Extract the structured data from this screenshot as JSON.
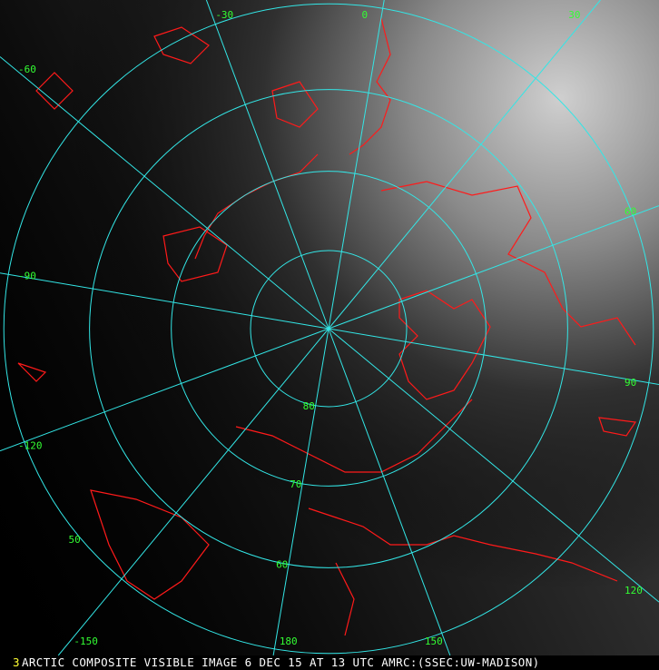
{
  "image": {
    "frame_number": "3",
    "caption": "ARCTIC COMPOSITE VISIBLE IMAGE 6 DEC 15 AT 13 UTC AMRC:(SSEC:UW-MADISON)"
  },
  "grid": {
    "projection": "north polar stereographic",
    "line_color": "#33e6e6",
    "label_color": "#33ff33",
    "coastline_color": "#ff1a1a",
    "longitudes": [
      {
        "value": 0,
        "label": "0"
      },
      {
        "value": 30,
        "label": "30"
      },
      {
        "value": 60,
        "label": "60"
      },
      {
        "value": 90,
        "label": "90"
      },
      {
        "value": 120,
        "label": "120"
      },
      {
        "value": 150,
        "label": "150"
      },
      {
        "value": 180,
        "label": "180"
      },
      {
        "value": -150,
        "label": "-150"
      },
      {
        "value": -120,
        "label": "-120"
      },
      {
        "value": -90,
        "label": "-90"
      },
      {
        "value": -60,
        "label": "-60"
      },
      {
        "value": -30,
        "label": "-30"
      }
    ],
    "latitudes": [
      {
        "value": 80,
        "label": "80"
      },
      {
        "value": 70,
        "label": "70"
      },
      {
        "value": 60,
        "label": "60"
      },
      {
        "value": 50,
        "label": "50"
      }
    ]
  }
}
